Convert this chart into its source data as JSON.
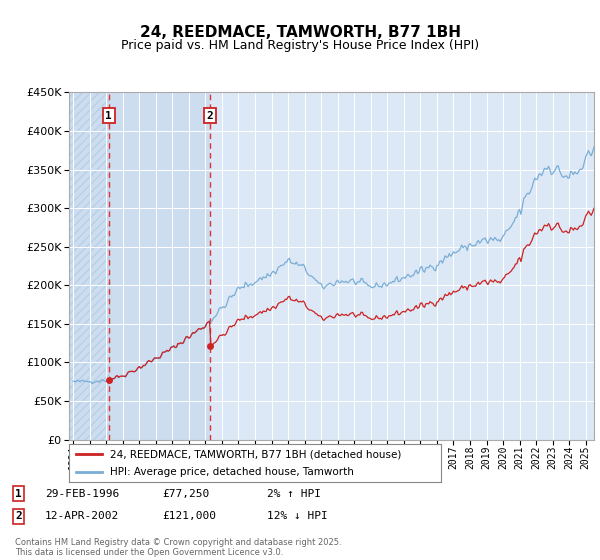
{
  "title": "24, REEDMACE, TAMWORTH, B77 1BH",
  "subtitle": "Price paid vs. HM Land Registry's House Price Index (HPI)",
  "footer": "Contains HM Land Registry data © Crown copyright and database right 2025.\nThis data is licensed under the Open Government Licence v3.0.",
  "legend_entries": [
    "24, REEDMACE, TAMWORTH, B77 1BH (detached house)",
    "HPI: Average price, detached house, Tamworth"
  ],
  "annotations": [
    {
      "num": "1",
      "date": "29-FEB-1996",
      "price": "£77,250",
      "hpi_change": "2% ↑ HPI"
    },
    {
      "num": "2",
      "date": "12-APR-2002",
      "price": "£121,000",
      "hpi_change": "12% ↓ HPI"
    }
  ],
  "sale1_year": 1996.16,
  "sale1_price": 77250,
  "sale2_year": 2002.28,
  "sale2_price": 121000,
  "hpi_line_color": "#7aaed6",
  "price_line_color": "#cc2222",
  "bg_plot_color": "#dce8f5",
  "shade_color": "#ccddf0",
  "ylim": [
    0,
    450000
  ],
  "xlim_start": 1993.75,
  "xlim_end": 2025.5,
  "title_fontsize": 11,
  "subtitle_fontsize": 9
}
